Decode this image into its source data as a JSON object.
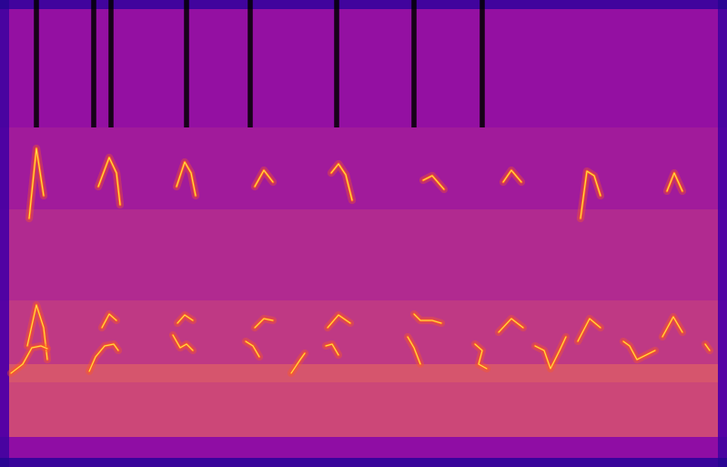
{
  "chart_data": {
    "type": "spectrogram",
    "xlim": [
      0,
      799
    ],
    "ylim": [
      0,
      513
    ],
    "tick_labels": false,
    "grid": false,
    "color": "#ff5a1e",
    "cell_x": [
      0,
      10,
      789,
      799
    ],
    "cell_y": [
      0,
      10,
      33,
      93,
      113,
      183,
      283,
      373,
      503,
      513
    ],
    "cells": [
      [
        0.05,
        0.08,
        0.05
      ],
      [
        0.12,
        0.3,
        0.12
      ],
      [
        0.15,
        0.5,
        0.15
      ],
      [
        0.15,
        0.55,
        0.15
      ],
      [
        0.15,
        0.45,
        0.15
      ],
      [
        0.14,
        0.4,
        0.14
      ],
      [
        0.13,
        0.35,
        0.13
      ],
      [
        0.12,
        0.31,
        0.12
      ],
      [
        0.05,
        0.1,
        0.05
      ]
    ],
    "color_range": [
      0,
      1
    ],
    "dropouts": [
      40,
      103,
      122,
      205,
      275,
      370,
      455,
      530
    ],
    "dropout_range": [
      373,
      513
    ],
    "calls": [
      {
        "x": [
          32,
          40,
          48
        ],
        "y": [
          273,
          350,
          298
        ]
      },
      {
        "x": [
          108,
          120,
          128,
          132
        ],
        "y": [
          308,
          340,
          323,
          288
        ]
      },
      {
        "x": [
          194,
          203,
          210,
          215
        ],
        "y": [
          308,
          335,
          323,
          298
        ]
      },
      {
        "x": [
          280,
          290,
          300
        ],
        "y": [
          308,
          326,
          313
        ]
      },
      {
        "x": [
          364,
          372,
          380,
          387
        ],
        "y": [
          323,
          333,
          321,
          293
        ]
      },
      {
        "x": [
          465,
          475,
          488
        ],
        "y": [
          315,
          320,
          305
        ]
      },
      {
        "x": [
          553,
          562,
          573
        ],
        "y": [
          313,
          326,
          313
        ]
      },
      {
        "x": [
          638,
          645,
          653,
          660
        ],
        "y": [
          273,
          325,
          320,
          298
        ]
      },
      {
        "x": [
          733,
          741,
          750
        ],
        "y": [
          303,
          323,
          303
        ]
      },
      {
        "x": [
          30,
          40,
          48,
          52
        ],
        "y": [
          133,
          178,
          153,
          118
        ]
      },
      {
        "x": [
          12,
          25,
          35,
          45,
          52
        ],
        "y": [
          103,
          113,
          131,
          133,
          130
        ]
      },
      {
        "x": [
          112,
          120,
          128
        ],
        "y": [
          153,
          168,
          161
        ]
      },
      {
        "x": [
          98,
          105,
          115,
          125,
          130
        ],
        "y": [
          105,
          121,
          133,
          135,
          128
        ]
      },
      {
        "x": [
          195,
          203,
          212
        ],
        "y": [
          158,
          167,
          161
        ]
      },
      {
        "x": [
          190,
          198,
          205,
          212
        ],
        "y": [
          145,
          131,
          135,
          128
        ]
      },
      {
        "x": [
          280,
          290,
          300
        ],
        "y": [
          153,
          163,
          161
        ]
      },
      {
        "x": [
          270,
          278,
          285
        ],
        "y": [
          138,
          133,
          121
        ]
      },
      {
        "x": [
          320,
          330,
          335
        ],
        "y": [
          103,
          118,
          125
        ]
      },
      {
        "x": [
          360,
          372,
          385
        ],
        "y": [
          153,
          167,
          158
        ]
      },
      {
        "x": [
          358,
          365,
          372
        ],
        "y": [
          133,
          135,
          123
        ]
      },
      {
        "x": [
          455,
          462,
          475,
          485
        ],
        "y": [
          168,
          161,
          161,
          158
        ]
      },
      {
        "x": [
          448,
          455,
          462
        ],
        "y": [
          143,
          131,
          113
        ]
      },
      {
        "x": [
          548,
          562,
          575
        ],
        "y": [
          148,
          163,
          153
        ]
      },
      {
        "x": [
          522,
          530,
          526,
          535
        ],
        "y": [
          135,
          128,
          113,
          108
        ]
      },
      {
        "x": [
          588,
          598,
          605,
          615,
          622
        ],
        "y": [
          133,
          128,
          108,
          128,
          143
        ]
      },
      {
        "x": [
          635,
          648,
          660
        ],
        "y": [
          138,
          163,
          153
        ]
      },
      {
        "x": [
          685,
          692,
          700,
          710,
          720
        ],
        "y": [
          138,
          133,
          118,
          123,
          128
        ]
      },
      {
        "x": [
          728,
          740,
          750
        ],
        "y": [
          143,
          165,
          148
        ]
      },
      {
        "x": [
          775,
          780
        ],
        "y": [
          135,
          128
        ]
      }
    ]
  }
}
